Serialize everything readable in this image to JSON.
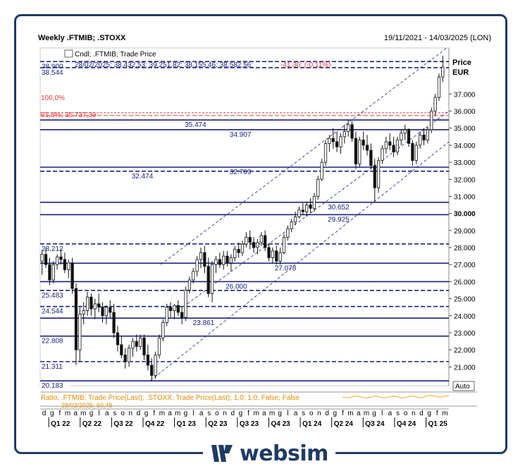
{
  "header": {
    "title": "Weekly .FTMIB; .STOXX",
    "date_range": "19/11/2021 - 14/03/2025 (LON)"
  },
  "legend": {
    "series_label": "Cndl; .FTMIB; Trade Price",
    "ohlc_line": "28/02/2025; 38.432,53; 39.251,82; 38.155,46; 38.582,56;",
    "change_line": "-41,30; (-0,11%)"
  },
  "fib": {
    "label_100": "100,0%",
    "label_618": "61,8%; 35.737,39"
  },
  "ratio_panel": {
    "label": "Ratio; .FTMIB; Trade Price(Last); .STOXX; Trade Price(Last);  1,0; 1,0; False; False",
    "auto_label": "Auto",
    "sub_label": "28/02/2025; 60,49"
  },
  "logo": {
    "text": "websim"
  },
  "colors": {
    "candle": "#111111",
    "levels": "#1a237e",
    "fib": "#e53935",
    "ratio": "#f0a030",
    "frame": "#1f3a64"
  },
  "chart_data": {
    "type": "candlestick",
    "title": "Weekly .FTMIB; .STOXX",
    "y_axis_title": "Price",
    "y_axis_unit": "EUR",
    "y_range": [
      19900,
      39700
    ],
    "y_ticks": [
      "21.000",
      "22.000",
      "23.000",
      "24.000",
      "25.000",
      "26.000",
      "27.000",
      "28.000",
      "29.000",
      "30.000",
      "31.000",
      "32.000",
      "33.000",
      "34.000",
      "35.000",
      "36.000",
      "37.000"
    ],
    "bold_tick": "30.000",
    "x_month_ticks": [
      "d",
      "g",
      "f",
      "m",
      "a",
      "m",
      "g",
      "l",
      "a",
      "s",
      "o",
      "n",
      "d",
      "g",
      "f",
      "m",
      "a",
      "m",
      "g",
      "l",
      "a",
      "s",
      "o",
      "n",
      "d",
      "g",
      "f",
      "m",
      "a",
      "m",
      "g",
      "l",
      "a",
      "s",
      "o",
      "n",
      "d",
      "g",
      "f",
      "m",
      "a",
      "m",
      "g",
      "l",
      "a",
      "s",
      "o",
      "n",
      "d",
      "g",
      "f",
      "m"
    ],
    "x_quarters": [
      "Q1 22",
      "Q2 22",
      "Q3 22",
      "Q4 22",
      "Q1 23",
      "Q2 23",
      "Q3 23",
      "Q4 23",
      "Q1 24",
      "Q2 24",
      "Q3 24",
      "Q4 24",
      "Q1 25"
    ],
    "levels": [
      {
        "value": 38900,
        "label": "38.900",
        "style": "dashed",
        "label_side": "left"
      },
      {
        "value": 38544,
        "label": "38.544",
        "style": "dashed",
        "label_side": "left"
      },
      {
        "value": 35474,
        "label": "35.474",
        "style": "solid",
        "label_pos": 0.38
      },
      {
        "value": 34907,
        "label": "34.907",
        "style": "solid",
        "label_pos": 0.49
      },
      {
        "value": 32709,
        "label": "32.709",
        "style": "solid",
        "label_pos": 0.49
      },
      {
        "value": 32474,
        "label": "32.474",
        "style": "dashed",
        "label_pos": 0.25
      },
      {
        "value": 30652,
        "label": "30.652",
        "style": "solid",
        "label_pos": 0.73
      },
      {
        "value": 29925,
        "label": "29.925",
        "style": "solid",
        "label_pos": 0.73
      },
      {
        "value": 28212,
        "label": "28.212",
        "style": "dashed",
        "label_side": "left"
      },
      {
        "value": 27078,
        "label": "27.078",
        "style": "solid",
        "label_pos": 0.6
      },
      {
        "value": 26000,
        "label": "26.000",
        "style": "solid",
        "label_pos": 0.48
      },
      {
        "value": 25483,
        "label": "25.483",
        "style": "dashed",
        "label_side": "left"
      },
      {
        "value": 24544,
        "label": "24.544",
        "style": "dashed",
        "label_side": "left"
      },
      {
        "value": 23861,
        "label": "23.861",
        "style": "solid",
        "label_pos": 0.4
      },
      {
        "value": 22808,
        "label": "22.808",
        "style": "solid",
        "label_side": "left"
      },
      {
        "value": 21311,
        "label": "21.311",
        "style": "dashed",
        "label_side": "left"
      },
      {
        "value": 20183,
        "label": "20.183",
        "style": "solid",
        "label_side": "left"
      }
    ],
    "fib_levels": [
      {
        "value": 35737,
        "label_key": "label_618"
      }
    ],
    "channel": {
      "upper": [
        [
          0.295,
          27000
        ],
        [
          0.995,
          39700
        ]
      ],
      "middle": [
        [
          0.36,
          24700
        ],
        [
          1.0,
          36000
        ]
      ],
      "lower": [
        [
          0.27,
          20200
        ],
        [
          1.0,
          34200
        ]
      ]
    },
    "candles": [
      [
        27200,
        27850,
        26400,
        27600
      ],
      [
        27600,
        27950,
        26800,
        27000
      ],
      [
        27000,
        27400,
        25800,
        26100
      ],
      [
        26100,
        27200,
        25900,
        27000
      ],
      [
        27000,
        27600,
        26700,
        27450
      ],
      [
        27450,
        27900,
        27000,
        27300
      ],
      [
        27300,
        27700,
        26500,
        26700
      ],
      [
        26700,
        27300,
        26200,
        27100
      ],
      [
        27100,
        27400,
        25300,
        25600
      ],
      [
        25600,
        25900,
        21100,
        22000
      ],
      [
        22000,
        24500,
        21300,
        24100
      ],
      [
        24100,
        24800,
        23500,
        24300
      ],
      [
        24300,
        25400,
        24000,
        25100
      ],
      [
        25100,
        25300,
        24000,
        24400
      ],
      [
        24400,
        25000,
        23800,
        24700
      ],
      [
        24700,
        25300,
        24200,
        24500
      ],
      [
        24500,
        24800,
        23600,
        24000
      ],
      [
        24000,
        24600,
        23500,
        24500
      ],
      [
        24500,
        24900,
        23900,
        24200
      ],
      [
        24200,
        24700,
        22700,
        23000
      ],
      [
        23000,
        23400,
        21900,
        22300
      ],
      [
        22300,
        22800,
        21500,
        21700
      ],
      [
        21700,
        22100,
        20900,
        21300
      ],
      [
        21300,
        22300,
        21000,
        22100
      ],
      [
        22100,
        22700,
        21600,
        22500
      ],
      [
        22500,
        22900,
        21900,
        22200
      ],
      [
        22200,
        22900,
        22000,
        22700
      ],
      [
        22700,
        22900,
        21400,
        21700
      ],
      [
        21700,
        22300,
        20800,
        21100
      ],
      [
        21100,
        21500,
        20200,
        20500
      ],
      [
        20500,
        21900,
        20300,
        21700
      ],
      [
        21700,
        22900,
        21500,
        22700
      ],
      [
        22700,
        23800,
        22500,
        23600
      ],
      [
        23600,
        24700,
        23400,
        24500
      ],
      [
        24500,
        24800,
        23900,
        24300
      ],
      [
        24300,
        24700,
        23800,
        24600
      ],
      [
        24600,
        24900,
        24000,
        24200
      ],
      [
        24200,
        24500,
        23500,
        23900
      ],
      [
        23900,
        25700,
        23700,
        25500
      ],
      [
        25500,
        26300,
        25300,
        26100
      ],
      [
        26100,
        26800,
        25900,
        26600
      ],
      [
        26600,
        27500,
        26300,
        27300
      ],
      [
        27300,
        28000,
        26800,
        27700
      ],
      [
        27700,
        28100,
        26500,
        26900
      ],
      [
        26900,
        27400,
        25100,
        25300
      ],
      [
        25300,
        27200,
        24800,
        27000
      ],
      [
        27000,
        27500,
        26500,
        27300
      ],
      [
        27300,
        27700,
        26800,
        27000
      ],
      [
        27000,
        27800,
        26700,
        27500
      ],
      [
        27500,
        27800,
        26900,
        27100
      ],
      [
        27100,
        27600,
        26600,
        27400
      ],
      [
        27400,
        28100,
        27200,
        27900
      ],
      [
        27900,
        28300,
        27400,
        27700
      ],
      [
        27700,
        28400,
        27500,
        28200
      ],
      [
        28200,
        28900,
        28000,
        28600
      ],
      [
        28600,
        29000,
        27900,
        28300
      ],
      [
        28300,
        28600,
        27700,
        28000
      ],
      [
        28000,
        28500,
        27600,
        28300
      ],
      [
        28300,
        28900,
        28100,
        28700
      ],
      [
        28700,
        29000,
        27800,
        28000
      ],
      [
        28000,
        28200,
        27200,
        27400
      ],
      [
        27400,
        28000,
        27100,
        27800
      ],
      [
        27800,
        28100,
        27000,
        27200
      ],
      [
        27200,
        28000,
        27000,
        27700
      ],
      [
        27700,
        28800,
        27600,
        28600
      ],
      [
        28600,
        29300,
        28400,
        29100
      ],
      [
        29100,
        29700,
        28900,
        29500
      ],
      [
        29500,
        30100,
        29300,
        29800
      ],
      [
        29800,
        30400,
        29700,
        30200
      ],
      [
        30200,
        30600,
        29900,
        30100
      ],
      [
        30100,
        30700,
        29800,
        30500
      ],
      [
        30500,
        30900,
        30000,
        30300
      ],
      [
        30300,
        31200,
        30100,
        31000
      ],
      [
        31000,
        32200,
        30800,
        32000
      ],
      [
        32000,
        33200,
        31900,
        33000
      ],
      [
        33000,
        34300,
        32800,
        34100
      ],
      [
        34100,
        34600,
        33600,
        34400
      ],
      [
        34400,
        35000,
        33800,
        34200
      ],
      [
        34200,
        34800,
        33600,
        33900
      ],
      [
        33900,
        34700,
        33500,
        34500
      ],
      [
        34500,
        35200,
        34100,
        34800
      ],
      [
        34800,
        35500,
        34500,
        35200
      ],
      [
        35200,
        35400,
        34200,
        34400
      ],
      [
        34400,
        34800,
        32600,
        32900
      ],
      [
        32900,
        34500,
        32700,
        34300
      ],
      [
        34300,
        34800,
        33700,
        34000
      ],
      [
        34000,
        34600,
        33400,
        33700
      ],
      [
        33700,
        34100,
        32600,
        32800
      ],
      [
        32800,
        33200,
        30700,
        31500
      ],
      [
        31500,
        33300,
        31200,
        33100
      ],
      [
        33100,
        34000,
        32900,
        33800
      ],
      [
        33800,
        34500,
        33500,
        34200
      ],
      [
        34200,
        34700,
        33700,
        34000
      ],
      [
        34000,
        34500,
        33300,
        33600
      ],
      [
        33600,
        34500,
        33400,
        34300
      ],
      [
        34300,
        34900,
        34000,
        34700
      ],
      [
        34700,
        35200,
        34300,
        34900
      ],
      [
        34900,
        35000,
        33900,
        34100
      ],
      [
        34100,
        34300,
        32800,
        33100
      ],
      [
        33100,
        34200,
        32900,
        34000
      ],
      [
        34000,
        34800,
        33800,
        34600
      ],
      [
        34600,
        35000,
        34000,
        34300
      ],
      [
        34300,
        35100,
        34100,
        34900
      ],
      [
        34900,
        36200,
        34700,
        36000
      ],
      [
        36000,
        37000,
        35700,
        36800
      ],
      [
        36800,
        38200,
        36600,
        38000
      ],
      [
        38000,
        39250,
        37700,
        38580
      ]
    ],
    "ratio_series_note": "Ratio .FTMIB / .STOXX"
  }
}
